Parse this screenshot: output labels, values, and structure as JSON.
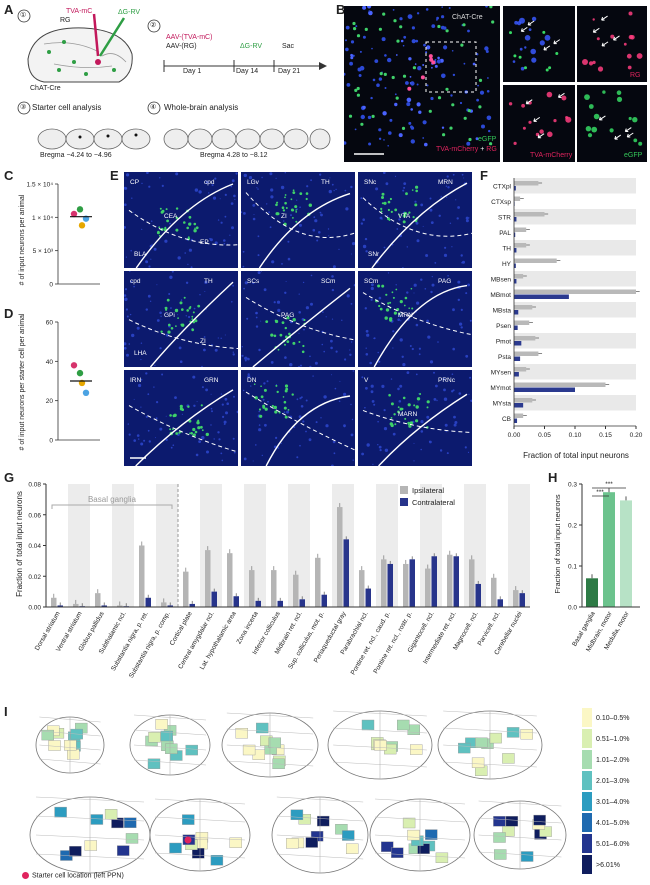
{
  "panels": {
    "A": "A",
    "B": "B",
    "C": "C",
    "D": "D",
    "E": "E",
    "F": "F",
    "G": "G",
    "H": "H",
    "I": "I"
  },
  "panelA": {
    "steps": [
      "①",
      "②",
      "③",
      "④"
    ],
    "tva_label": "TVA-mC",
    "rg_label": "RG",
    "dg_label": "ΔG-RV",
    "mouse_line": "ChAT-Cre",
    "timeline": {
      "inj1a": "AAV-(TVA-mC)",
      "inj1b": "AAV-(RG)",
      "inj2": "ΔG-RV",
      "sac": "Sac",
      "day1": "Day 1",
      "day14": "Day 14",
      "day21": "Day 21"
    },
    "starter_title": "Starter cell analysis",
    "starter_bregma": "Bregma −4.24 to −4.96",
    "whole_title": "Whole-brain analysis",
    "whole_bregma": "Bregma 4.28 to −8.12"
  },
  "panelB": {
    "mouse_line": "ChAT-Cre",
    "legend_egfp": "eGFP",
    "legend_tva": "TVA-mCherry",
    "legend_plus": "+",
    "legend_rg": "RG",
    "sub_rg": "RG",
    "sub_tva": "TVA-mCherry",
    "sub_egfp": "eGFP"
  },
  "panelC": {
    "ylabel": "# of input neurons per animal",
    "ticks": [
      "1.5 × 10⁴",
      "1 × 10⁴",
      "5 × 10³",
      "0"
    ],
    "ylim": [
      0,
      15000
    ],
    "points": [
      {
        "v": 10500,
        "c": "#d6336c"
      },
      {
        "v": 11200,
        "c": "#2f9e44"
      },
      {
        "v": 9800,
        "c": "#4ba3e3"
      },
      {
        "v": 8800,
        "c": "#e6a700"
      }
    ],
    "mean": 10100
  },
  "panelD": {
    "ylabel": "# of input neurons per starter cell per animal",
    "ticks": [
      "60",
      "40",
      "20",
      "0"
    ],
    "ylim": [
      0,
      60
    ],
    "points": [
      {
        "v": 38,
        "c": "#d6336c"
      },
      {
        "v": 34,
        "c": "#2f9e44"
      },
      {
        "v": 24,
        "c": "#4ba3e3"
      },
      {
        "v": 29,
        "c": "#e6a700"
      }
    ],
    "mean": 30
  },
  "panelE": {
    "tiles": [
      [
        "CP",
        "cpd",
        "CEA",
        "BLA",
        "EP"
      ],
      [
        "LGv",
        "TH",
        "ZI"
      ],
      [
        "SNc",
        "MRN",
        "VTA",
        "SNr"
      ],
      [
        "cpd",
        "TH",
        "GPi",
        "LHA",
        "ZI"
      ],
      [
        "SCs",
        "SCm",
        "PAG"
      ],
      [
        "SCm",
        "PAG",
        "MRN"
      ],
      [
        "IRN",
        "GRN"
      ],
      [
        "DN"
      ],
      [
        "V",
        "PRNc",
        "MARN"
      ]
    ]
  },
  "panelF": {
    "xlabel": "Fraction of total input neurons",
    "ticks": [
      "0.00",
      "0.05",
      "0.10",
      "0.15",
      "0.20"
    ]
  },
  "panelG": {
    "ylabel": "Fraction of total input neurons",
    "ticks": [
      "0.00",
      "0.02",
      "0.04",
      "0.06",
      "0.08"
    ],
    "basal_label": "Basal ganglia",
    "legend": [
      "Ipsilateral",
      "Contralateral"
    ]
  },
  "panelH": {
    "ylabel": "Fraction of total input neurons",
    "ticks": [
      "0.0",
      "0.1",
      "0.2",
      "0.3"
    ],
    "sig": [
      "***",
      "***"
    ]
  },
  "panelI": {
    "legend": [
      "0.10–0.5%",
      "0.51–1.0%",
      "1.01–2.0%",
      "2.01–3.0%",
      "3.01–4.0%",
      "4.01–5.0%",
      "5.01–6.0%",
      ">6.01%"
    ],
    "legend_colors": [
      "#fbf7c5",
      "#d9efb1",
      "#a6dcb0",
      "#5fc1c0",
      "#2c9cc0",
      "#1f6ab0",
      "#23358f",
      "#0f1d5e"
    ],
    "starter": "Starter cell location (left PPN)"
  },
  "chart_data": [
    {
      "type": "scatter",
      "title": "",
      "ylabel": "# of input neurons per animal",
      "ylim": [
        0,
        15000
      ],
      "values": [
        10500,
        11200,
        9800,
        8800
      ],
      "mean": 10100
    },
    {
      "type": "scatter",
      "title": "",
      "ylabel": "# of input neurons per starter cell per animal",
      "ylim": [
        0,
        60
      ],
      "values": [
        38,
        34,
        24,
        29
      ],
      "mean": 30
    },
    {
      "type": "bar",
      "orientation": "horizontal",
      "xlabel": "Fraction of total input neurons",
      "xlim": [
        0,
        0.2
      ],
      "categories": [
        "CTXpl",
        "CTXsp",
        "STR",
        "PAL",
        "TH",
        "HY",
        "MBsen",
        "MBmot",
        "MBsta",
        "Psen",
        "Pmot",
        "Psta",
        "MYsen",
        "MYmot",
        "MYsta",
        "CB"
      ],
      "series": [
        {
          "values": [
            0.04,
            0.01,
            0.05,
            0.02,
            0.02,
            0.07,
            0.015,
            0.2,
            0.03,
            0.025,
            0.035,
            0.04,
            0.02,
            0.15,
            0.03,
            0.015
          ]
        },
        {
          "values": [
            0.003,
            0.001,
            0.004,
            0.002,
            0.004,
            0.003,
            0.004,
            0.09,
            0.007,
            0.006,
            0.012,
            0.01,
            0.008,
            0.1,
            0.015,
            0.005
          ]
        }
      ]
    },
    {
      "type": "bar",
      "ylabel": "Fraction of total input neurons",
      "ylim": [
        0,
        0.08
      ],
      "categories": [
        "Dorsal striatum",
        "Ventral striatum",
        "Globus pallidus",
        "Subthalamic ncl.",
        "Substantia nigra, p. ret.",
        "Substantia nigra, p. comp.",
        "Cortical plate",
        "Central amygdalar ncl.",
        "Lat. hypothalamic area",
        "Zona incerta",
        "Inferior colliculus",
        "Midbrain ret. ncl.",
        "Sup. colliculus, mot. p.",
        "Periaqueductal gray",
        "Parabrachial ncl.",
        "Pontine ret. ncl., caud. p.",
        "Pontine ret. ncl., rostr. p.",
        "Gigantocell. ncl.",
        "Intermediate ret. ncl.",
        "Magnocell. ncl.",
        "Parvicell. ncl.",
        "Cerebellar nuclei"
      ],
      "series": [
        {
          "name": "Ipsilateral",
          "values": [
            0.006,
            0.002,
            0.009,
            0.001,
            0.04,
            0.003,
            0.023,
            0.037,
            0.035,
            0.024,
            0.024,
            0.021,
            0.032,
            0.065,
            0.024,
            0.031,
            0.028,
            0.025,
            0.034,
            0.031,
            0.019,
            0.011
          ]
        },
        {
          "name": "Contralateral",
          "values": [
            0.001,
            0.0005,
            0.001,
            0.0005,
            0.006,
            0.001,
            0.002,
            0.01,
            0.007,
            0.004,
            0.004,
            0.005,
            0.008,
            0.044,
            0.012,
            0.028,
            0.031,
            0.033,
            0.033,
            0.015,
            0.005,
            0.009
          ]
        }
      ]
    },
    {
      "type": "bar",
      "ylabel": "Fraction of total input neurons",
      "ylim": [
        0,
        0.3
      ],
      "categories": [
        "Basal ganglia",
        "Midbrain, motor",
        "Medulla, motor"
      ],
      "values": [
        0.07,
        0.28,
        0.26
      ]
    }
  ]
}
